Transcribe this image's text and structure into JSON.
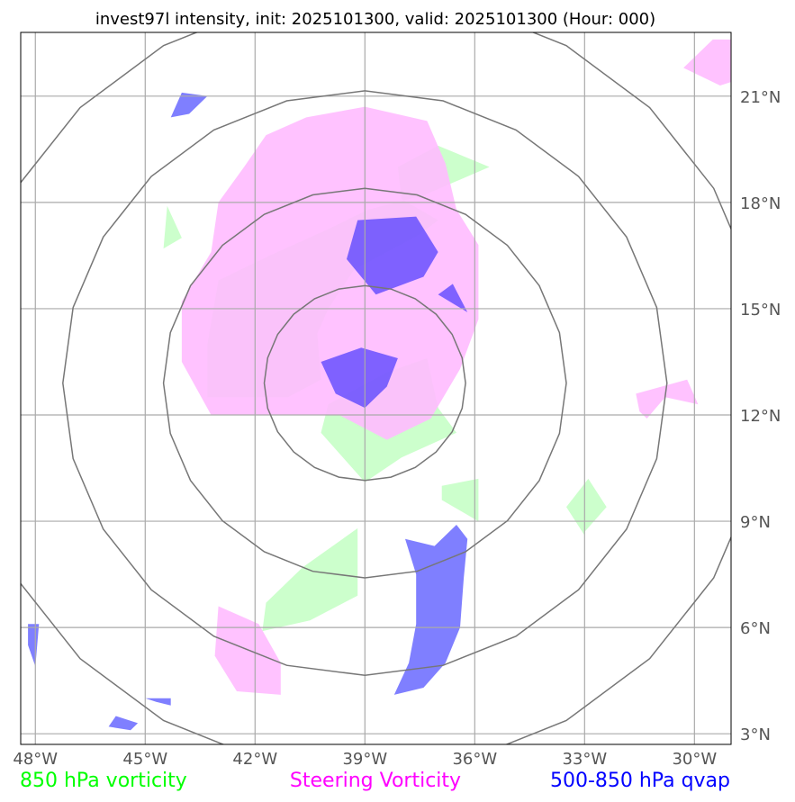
{
  "chart_data": {
    "type": "map",
    "title": "invest97l intensity, init: 2025101300, valid: 2025101300 (Hour: 000)",
    "lon_range": [
      -48.4,
      -29.0
    ],
    "lat_range": [
      2.7,
      22.8
    ],
    "x_ticks": [
      {
        "value": -48,
        "label": "48°W"
      },
      {
        "value": -45,
        "label": "45°W"
      },
      {
        "value": -42,
        "label": "42°W"
      },
      {
        "value": -39,
        "label": "39°W"
      },
      {
        "value": -36,
        "label": "36°W"
      },
      {
        "value": -33,
        "label": "33°W"
      },
      {
        "value": -30,
        "label": "30°W"
      }
    ],
    "y_ticks": [
      {
        "value": 3,
        "label": "3°N"
      },
      {
        "value": 6,
        "label": "6°N"
      },
      {
        "value": 9,
        "label": "9°N"
      },
      {
        "value": 12,
        "label": "12°N"
      },
      {
        "value": 15,
        "label": "15°N"
      },
      {
        "value": 18,
        "label": "18°N"
      },
      {
        "value": 21,
        "label": "21°N"
      }
    ],
    "range_rings": {
      "center": [
        -39.0,
        12.9
      ],
      "radii_deg": [
        2.75,
        5.5,
        8.25,
        11.0
      ]
    },
    "legend": [
      {
        "label": "850 hPa vorticity",
        "color": "#00ff00"
      },
      {
        "label": "Steering Vorticity",
        "color": "#ff00ff"
      },
      {
        "label": "500-850 hPa qvap",
        "color": "#0000ff"
      }
    ],
    "layers": [
      {
        "name": "850-hpa-vorticity",
        "color": "#ccffcc",
        "polygons": [
          [
            [
              -37.0,
              19.6
            ],
            [
              -35.6,
              19.0
            ],
            [
              -37.4,
              18.2
            ],
            [
              -38.9,
              17.8
            ],
            [
              -40.1,
              17.2
            ],
            [
              -41.6,
              16.5
            ],
            [
              -43.0,
              15.8
            ],
            [
              -43.3,
              14.0
            ],
            [
              -43.3,
              12.5
            ],
            [
              -41.1,
              12.5
            ],
            [
              -40.2,
              13.0
            ],
            [
              -40.3,
              14.3
            ],
            [
              -40.0,
              15.0
            ],
            [
              -39.3,
              16.1
            ],
            [
              -37.5,
              17.1
            ],
            [
              -37.0,
              17.5
            ],
            [
              -38.0,
              18.1
            ],
            [
              -38.1,
              19.0
            ]
          ],
          [
            [
              -44.0,
              17.0
            ],
            [
              -44.5,
              16.7
            ],
            [
              -44.4,
              17.9
            ]
          ],
          [
            [
              -40.2,
              11.5
            ],
            [
              -39.0,
              10.1
            ],
            [
              -38.0,
              10.8
            ],
            [
              -36.5,
              11.5
            ],
            [
              -37.0,
              12.2
            ],
            [
              -37.3,
              13.6
            ],
            [
              -38.4,
              13.2
            ],
            [
              -40.0,
              12.3
            ]
          ],
          [
            [
              -36.9,
              9.6
            ],
            [
              -35.9,
              9.0
            ],
            [
              -35.9,
              10.2
            ],
            [
              -36.9,
              10.0
            ]
          ],
          [
            [
              -33.0,
              8.7
            ],
            [
              -32.4,
              9.4
            ],
            [
              -32.9,
              10.2
            ],
            [
              -33.5,
              9.4
            ],
            [
              -33.0,
              8.6
            ]
          ],
          [
            [
              -41.7,
              6.7
            ],
            [
              -40.7,
              7.7
            ],
            [
              -39.2,
              8.8
            ],
            [
              -39.2,
              6.9
            ],
            [
              -40.5,
              6.2
            ],
            [
              -41.8,
              5.9
            ]
          ]
        ]
      },
      {
        "name": "steering-vorticity",
        "color": "#ffbbff",
        "polygons": [
          [
            [
              -40.6,
              20.4
            ],
            [
              -39.0,
              20.7
            ],
            [
              -37.3,
              20.3
            ],
            [
              -36.8,
              19.1
            ],
            [
              -36.5,
              17.8
            ],
            [
              -35.9,
              16.8
            ],
            [
              -35.9,
              14.7
            ],
            [
              -36.4,
              13.3
            ],
            [
              -37.2,
              11.9
            ],
            [
              -38.4,
              11.3
            ],
            [
              -39.7,
              12.0
            ],
            [
              -41.4,
              12.0
            ],
            [
              -43.2,
              12.0
            ],
            [
              -44.0,
              13.5
            ],
            [
              -44.0,
              15.2
            ],
            [
              -43.2,
              16.6
            ],
            [
              -43.0,
              18.0
            ],
            [
              -42.3,
              19.0
            ],
            [
              -41.7,
              19.9
            ]
          ],
          [
            [
              -29.0,
              22.6
            ],
            [
              -29.5,
              22.6
            ],
            [
              -30.3,
              21.8
            ],
            [
              -29.3,
              21.3
            ],
            [
              -29.0,
              21.4
            ]
          ],
          [
            [
              -31.5,
              12.1
            ],
            [
              -31.3,
              11.9
            ],
            [
              -30.8,
              12.5
            ],
            [
              -29.9,
              12.3
            ],
            [
              -30.2,
              13.0
            ],
            [
              -31.6,
              12.6
            ]
          ],
          [
            [
              -43.1,
              5.2
            ],
            [
              -42.5,
              4.2
            ],
            [
              -41.3,
              4.1
            ],
            [
              -41.3,
              5.0
            ],
            [
              -41.9,
              6.1
            ],
            [
              -43.0,
              6.6
            ]
          ]
        ]
      },
      {
        "name": "qvap",
        "color": "#0000ff",
        "polygons": [
          [
            [
              -39.2,
              17.5
            ],
            [
              -37.6,
              17.6
            ],
            [
              -37.0,
              16.6
            ],
            [
              -37.4,
              15.9
            ],
            [
              -38.7,
              15.4
            ],
            [
              -39.5,
              16.4
            ]
          ],
          [
            [
              -37.0,
              15.4
            ],
            [
              -36.2,
              14.9
            ],
            [
              -36.6,
              15.7
            ]
          ],
          [
            [
              -40.2,
              13.5
            ],
            [
              -39.1,
              13.9
            ],
            [
              -38.1,
              13.6
            ],
            [
              -38.4,
              12.8
            ],
            [
              -39.0,
              12.2
            ],
            [
              -39.8,
              12.6
            ]
          ],
          [
            [
              -44.0,
              21.1
            ],
            [
              -43.3,
              21.0
            ],
            [
              -43.8,
              20.5
            ],
            [
              -44.3,
              20.4
            ]
          ],
          [
            [
              -37.1,
              8.3
            ],
            [
              -36.5,
              8.9
            ],
            [
              -36.2,
              8.5
            ],
            [
              -36.3,
              7.4
            ],
            [
              -36.4,
              6.0
            ],
            [
              -36.8,
              5.0
            ],
            [
              -37.4,
              4.3
            ],
            [
              -38.2,
              4.1
            ],
            [
              -37.8,
              5.0
            ],
            [
              -37.6,
              6.1
            ],
            [
              -37.6,
              7.5
            ],
            [
              -37.9,
              8.5
            ]
          ],
          [
            [
              -48.2,
              6.1
            ],
            [
              -48.2,
              5.5
            ],
            [
              -48.0,
              4.9
            ],
            [
              -47.9,
              6.1
            ]
          ],
          [
            [
              -45.8,
              3.5
            ],
            [
              -46.0,
              3.2
            ],
            [
              -45.4,
              3.1
            ],
            [
              -45.2,
              3.3
            ]
          ],
          [
            [
              -45.0,
              4.0
            ],
            [
              -44.3,
              4.0
            ],
            [
              -44.3,
              3.8
            ],
            [
              -44.7,
              3.9
            ]
          ]
        ]
      }
    ]
  }
}
